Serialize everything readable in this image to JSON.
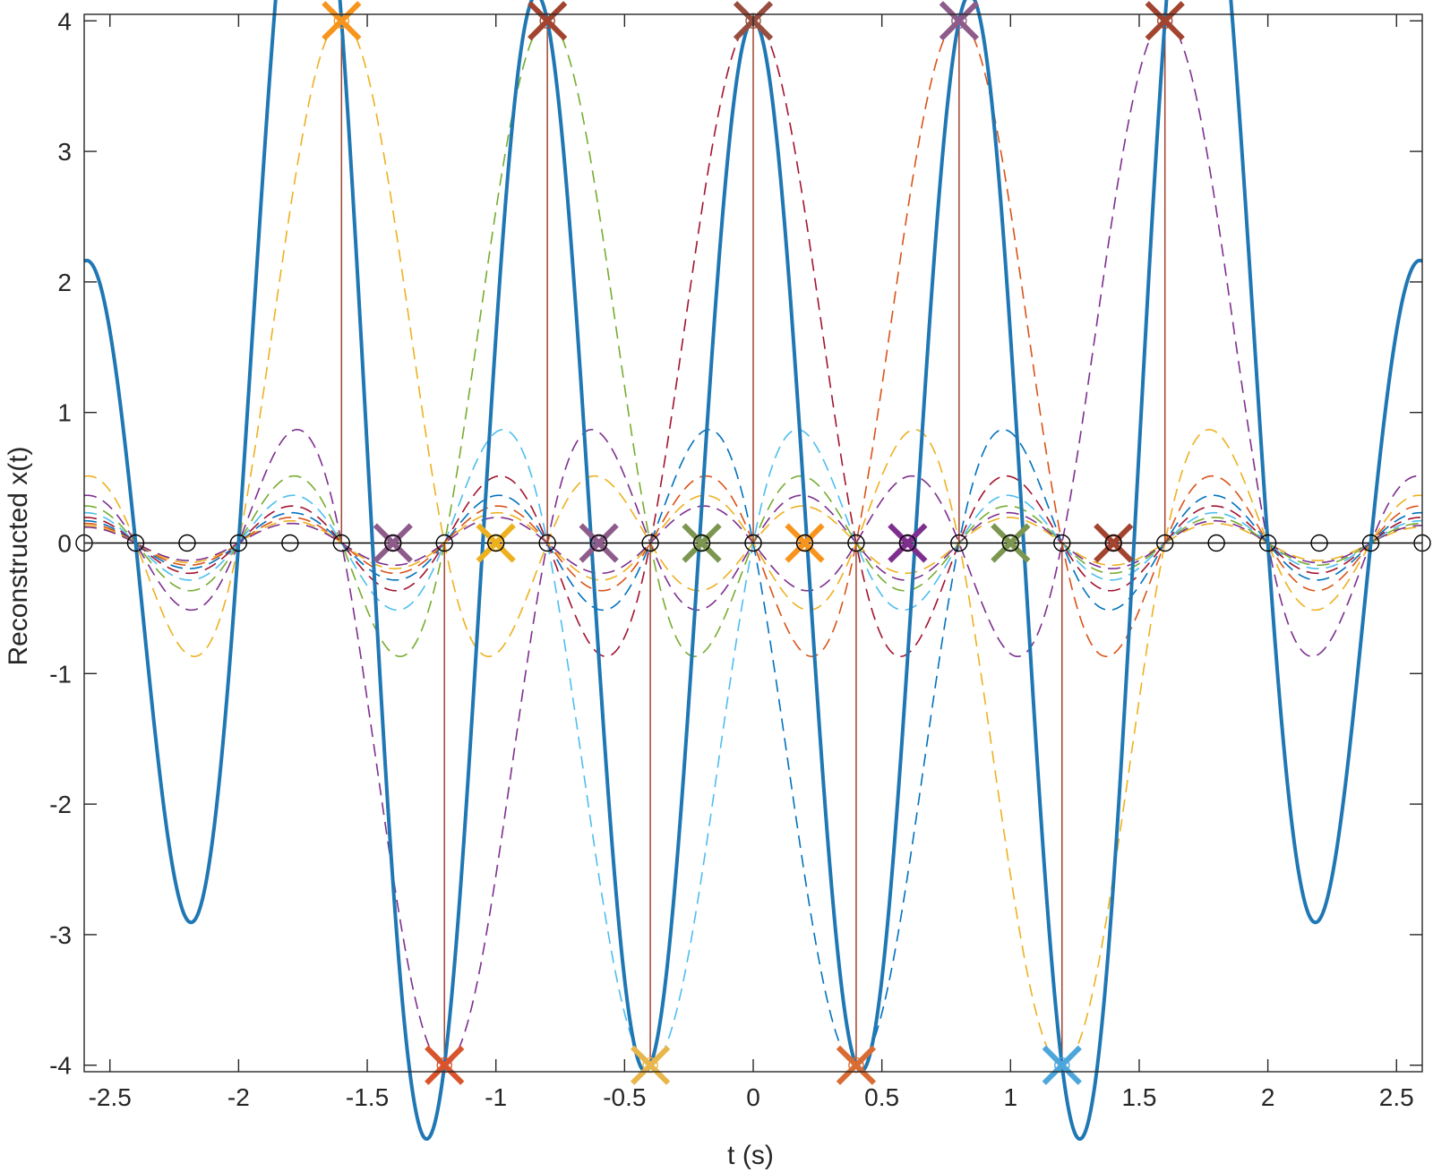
{
  "chart_data": {
    "type": "line",
    "title": "",
    "xlabel": "t (s)",
    "ylabel": "Reconstructed x(t)",
    "xlim": [
      -2.6,
      2.6
    ],
    "ylim": [
      -4.05,
      4.05
    ],
    "xticks": [
      -2.5,
      -2,
      -1.5,
      -1,
      -0.5,
      0,
      0.5,
      1,
      1.5,
      2,
      2.5
    ],
    "xtick_labels": [
      "-2.5",
      "-2",
      "-1.5",
      "-1",
      "-0.5",
      "0",
      "0.5",
      "1",
      "1.5",
      "2",
      "2.5"
    ],
    "yticks": [
      -4,
      -3,
      -2,
      -1,
      0,
      1,
      2,
      3,
      4
    ],
    "ytick_labels": [
      "-4",
      "-3",
      "-2",
      "-1",
      "0",
      "1",
      "2",
      "3",
      "4"
    ],
    "grid": false,
    "legend": "none",
    "sample_period": 0.2,
    "sinc_lobe_width": 0.4,
    "samples": {
      "t": [
        -1.6,
        -1.4,
        -1.2,
        -1.0,
        -0.8,
        -0.6,
        -0.4,
        -0.2,
        0.0,
        0.2,
        0.4,
        0.6,
        0.8,
        1.0,
        1.2,
        1.4,
        1.6
      ],
      "x": [
        4,
        0,
        -4,
        0,
        4,
        0,
        -4,
        0,
        4,
        0,
        -4,
        0,
        4,
        0,
        -4,
        0,
        4
      ]
    },
    "zero_markers_t": [
      -2.6,
      -2.4,
      -2.2,
      -2.0,
      -1.8,
      -1.6,
      -1.4,
      -1.2,
      -1.0,
      -0.8,
      -0.6,
      -0.4,
      -0.2,
      0.0,
      0.2,
      0.4,
      0.6,
      0.8,
      1.0,
      1.2,
      1.4,
      1.6,
      1.8,
      2.0,
      2.2,
      2.4,
      2.6
    ],
    "series": [
      {
        "values_ref": "samples",
        "style": "stem",
        "color": "#A2142F"
      },
      {
        "values_ref": "sinc components",
        "style": "dashed",
        "colors": [
          "#EDB120",
          "#7E2F8E",
          "#77AC30",
          "#4DBEEE",
          "#A2142F",
          "#0072BD",
          "#D95319"
        ]
      },
      {
        "values_ref": "reconstruction",
        "style": "solid",
        "color": "#0072BD"
      }
    ],
    "x_marker_colors": [
      "#F7941D",
      "#8E5C8A",
      "#D9542C",
      "#EDB120",
      "#A2442F",
      "#8E5C8A",
      "#E8B64A",
      "#7C9650",
      "#984E3E",
      "#F7941D",
      "#D96C33",
      "#7E2F8E",
      "#8E5C8A",
      "#7C9650",
      "#4DA6DB",
      "#A2442F",
      "#A2442F"
    ],
    "colors": {
      "axis": "#262626",
      "zero_line": "#000000",
      "reconstruction": "#1F77B4",
      "stem": "#A0442F"
    }
  }
}
